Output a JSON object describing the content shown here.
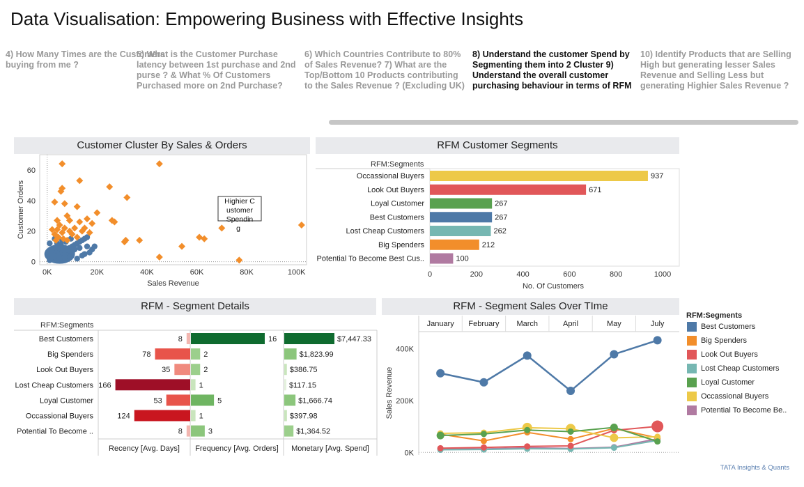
{
  "title": "Data Visualisation: Empowering Business with Effective Insights",
  "tabs": [
    {
      "label": "4) How Many Times are the Customers buying from me ?",
      "active": false
    },
    {
      "label": "5) What is the Customer Purchase latency between 1st purchase and 2nd purse ? & What % Of Customers Purchased more on 2nd Purchase?",
      "active": false
    },
    {
      "label": "6) Which Countries Contribute to 80% of Sales Revenue?    7) What are the Top/Bottom 10 Products contributing to the Sales Revenue ? (Excluding UK)",
      "active": false
    },
    {
      "label": "8) Understand the customer Spend by Segmenting them into 2 Cluster 9) Understand the overall customer purchasing behaviour  in terms of RFM",
      "active": true
    },
    {
      "label": "10) Identify Products that are Selling High but generating lesser Sales Revenue and Selling Less but generating Highier Sales Revenue ?",
      "active": false
    }
  ],
  "panels": {
    "cluster": "Customer Cluster By Sales & Orders",
    "segments": "RFM Customer Segments",
    "details": "RFM - Segment Details",
    "sales": "RFM - Segment Sales Over TIme"
  },
  "legend": {
    "title": "RFM:Segments",
    "items": [
      {
        "name": "Best Customers",
        "color": "#4e79a7"
      },
      {
        "name": "Big Spenders",
        "color": "#f28e2b"
      },
      {
        "name": "Look Out Buyers",
        "color": "#e15759"
      },
      {
        "name": "Lost Cheap Customers",
        "color": "#76b7b2"
      },
      {
        "name": "Loyal Customer",
        "color": "#59a14f"
      },
      {
        "name": "Occassional Buyers",
        "color": "#edc948"
      },
      {
        "name": "Potential To Become Be..",
        "color": "#b07aa1"
      }
    ]
  },
  "footer": "TATA Insights & Quants",
  "chart_data": [
    {
      "id": "cluster",
      "type": "scatter",
      "xlabel": "Sales Revenue",
      "ylabel": "Customer Orders",
      "xlim": [
        -3000,
        104000
      ],
      "ylim": [
        -2,
        70
      ],
      "xticks": [
        "0K",
        "20K",
        "40K",
        "60K",
        "80K",
        "100K"
      ],
      "yticks": [
        "0",
        "20",
        "40",
        "60"
      ],
      "annotation": "Highier C\nustomer\nSpendin\ng",
      "series": [
        {
          "name": "Highier Customer Spending",
          "color": "#f28e2b",
          "marker": "diamond",
          "points": [
            [
              6000,
              64
            ],
            [
              45000,
              64
            ],
            [
              13000,
              53
            ],
            [
              25000,
              49
            ],
            [
              6000,
              48
            ],
            [
              5500,
              46
            ],
            [
              32000,
              42
            ],
            [
              3000,
              39
            ],
            [
              7000,
              38
            ],
            [
              12000,
              36
            ],
            [
              20000,
              32
            ],
            [
              8000,
              30
            ],
            [
              16000,
              28
            ],
            [
              26000,
              27
            ],
            [
              27000,
              26
            ],
            [
              4000,
              27
            ],
            [
              9000,
              27
            ],
            [
              18000,
              25
            ],
            [
              13000,
              26
            ],
            [
              5000,
              24
            ],
            [
              7000,
              22
            ],
            [
              11000,
              22
            ],
            [
              15000,
              22
            ],
            [
              70000,
              22
            ],
            [
              102000,
              24
            ],
            [
              2000,
              21
            ],
            [
              4000,
              21
            ],
            [
              9000,
              20
            ],
            [
              14000,
              20
            ],
            [
              3000,
              18
            ],
            [
              6000,
              19
            ],
            [
              10000,
              18
            ],
            [
              12000,
              16
            ],
            [
              61000,
              16
            ],
            [
              63000,
              15
            ],
            [
              37000,
              14
            ],
            [
              31000,
              13
            ],
            [
              31500,
              14
            ],
            [
              3500,
              14
            ],
            [
              8000,
              14
            ],
            [
              54000,
              10
            ],
            [
              45000,
              3
            ],
            [
              77000,
              1
            ],
            [
              4500,
              16
            ],
            [
              6500,
              15
            ],
            [
              17000,
              19
            ]
          ]
        },
        {
          "name": "Customer",
          "color": "#4e79a7",
          "marker": "circle",
          "points": [
            [
              1000,
              1
            ],
            [
              2000,
              2
            ],
            [
              3000,
              3
            ],
            [
              4000,
              4
            ],
            [
              5000,
              5
            ],
            [
              6000,
              6
            ],
            [
              7000,
              7
            ],
            [
              8000,
              8
            ],
            [
              9000,
              9
            ],
            [
              10000,
              10
            ],
            [
              11000,
              11
            ],
            [
              12000,
              12
            ],
            [
              13000,
              13
            ],
            [
              14000,
              14
            ],
            [
              15000,
              15
            ],
            [
              16000,
              16
            ],
            [
              2000,
              8
            ],
            [
              4000,
              12
            ],
            [
              6000,
              14
            ],
            [
              8000,
              4
            ],
            [
              10000,
              6
            ],
            [
              12000,
              2
            ],
            [
              14000,
              4
            ],
            [
              18000,
              8
            ],
            [
              19000,
              10
            ],
            [
              15000,
              5
            ],
            [
              17000,
              6
            ],
            [
              11000,
              8
            ],
            [
              1500,
              5
            ],
            [
              3500,
              9
            ],
            [
              5500,
              11
            ],
            [
              7500,
              13
            ],
            [
              9500,
              15
            ],
            [
              1000,
              12
            ],
            [
              3000,
              15
            ],
            [
              5000,
              2
            ],
            [
              9000,
              3
            ],
            [
              13000,
              9
            ],
            [
              16000,
              10
            ],
            [
              7000,
              3
            ]
          ]
        }
      ]
    },
    {
      "id": "segments",
      "type": "bar",
      "orientation": "horizontal",
      "rowheader": "RFM:Segments",
      "categories": [
        "Occassional Buyers",
        "Look Out Buyers",
        "Loyal Customer",
        "Best Customers",
        "Lost Cheap Customers",
        "Big Spenders",
        "Potential To Become Best Cus.."
      ],
      "values": [
        937,
        671,
        267,
        267,
        262,
        212,
        100
      ],
      "colors": [
        "#edc948",
        "#e15759",
        "#59a14f",
        "#4e79a7",
        "#76b7b2",
        "#f28e2b",
        "#b07aa1"
      ],
      "xlabel": "No. Of Customers",
      "xlim": [
        0,
        1000
      ],
      "xticks": [
        "0",
        "200",
        "400",
        "600",
        "800",
        "1000"
      ]
    },
    {
      "id": "details",
      "type": "bar",
      "orientation": "horizontal",
      "rowheader": "RFM:Segments",
      "categories": [
        "Best Customers",
        "Big Spenders",
        "Look Out Buyers",
        "Lost Cheap Customers",
        "Loyal Customer",
        "Occassional Buyers",
        "Potential To Become .."
      ],
      "columns": [
        "Recency [Avg. Days]",
        "Frequency [Avg. Orders]",
        "Monetary [Avg. Spend]"
      ],
      "recency": [
        8,
        78,
        35,
        166,
        53,
        124,
        8
      ],
      "recency_labels": [
        "8",
        "78",
        "35",
        "166",
        "53",
        "124",
        "8"
      ],
      "recency_colors": [
        "#f2b6b0",
        "#e8544a",
        "#f08a7e",
        "#9e0f27",
        "#e8544a",
        "#c9161f",
        "#f2b6b0"
      ],
      "frequency": [
        16,
        2,
        2,
        1,
        5,
        1,
        3
      ],
      "frequency_labels": [
        "16",
        "2",
        "2",
        "1",
        "5",
        "1",
        "3"
      ],
      "frequency_colors": [
        "#0f6b2f",
        "#9ccf8c",
        "#9ccf8c",
        "#c9e5bd",
        "#6fb562",
        "#c9e5bd",
        "#8cc67c"
      ],
      "monetary": [
        7447.33,
        1823.99,
        386.75,
        117.15,
        1666.74,
        397.98,
        1364.52
      ],
      "monetary_labels": [
        "$7,447.33",
        "$1,823.99",
        "$386.75",
        "$117.15",
        "$1,666.74",
        "$397.98",
        "$1,364.52"
      ],
      "monetary_colors": [
        "#0f6b2f",
        "#8cc67c",
        "#c9e5bd",
        "#e4f1dd",
        "#8cc67c",
        "#c9e5bd",
        "#9ccf8c"
      ]
    },
    {
      "id": "sales",
      "type": "line",
      "categories": [
        "January",
        "February",
        "March",
        "April",
        "May",
        "July"
      ],
      "ylabel": "Sales Revenue",
      "ylim": [
        -10000,
        460000
      ],
      "yticks": [
        "0K",
        "200K",
        "400K"
      ],
      "series": [
        {
          "name": "Best Customers",
          "color": "#4e79a7",
          "values": [
            305000,
            270000,
            373000,
            237000,
            378000,
            432000
          ]
        },
        {
          "name": "Big Spenders",
          "color": "#f28e2b",
          "values": [
            70000,
            44000,
            77000,
            51000,
            92000,
            56000
          ]
        },
        {
          "name": "Look Out Buyers",
          "color": "#e15759",
          "values": [
            16000,
            19000,
            23000,
            25000,
            85000,
            100000
          ]
        },
        {
          "name": "Lost Cheap Customers",
          "color": "#76b7b2",
          "values": [
            10000,
            11000,
            14000,
            13000,
            18000,
            46000
          ]
        },
        {
          "name": "Loyal Customer",
          "color": "#59a14f",
          "values": [
            65000,
            71000,
            86000,
            80000,
            96000,
            42000
          ]
        },
        {
          "name": "Occassional Buyers",
          "color": "#edc948",
          "values": [
            73000,
            76000,
            95000,
            91000,
            56000,
            60000
          ]
        },
        {
          "name": "Potential To Become Be..",
          "color": "#b07aa1",
          "values": [
            14000,
            13000,
            18000,
            15000,
            20000,
            52000
          ]
        }
      ]
    }
  ]
}
